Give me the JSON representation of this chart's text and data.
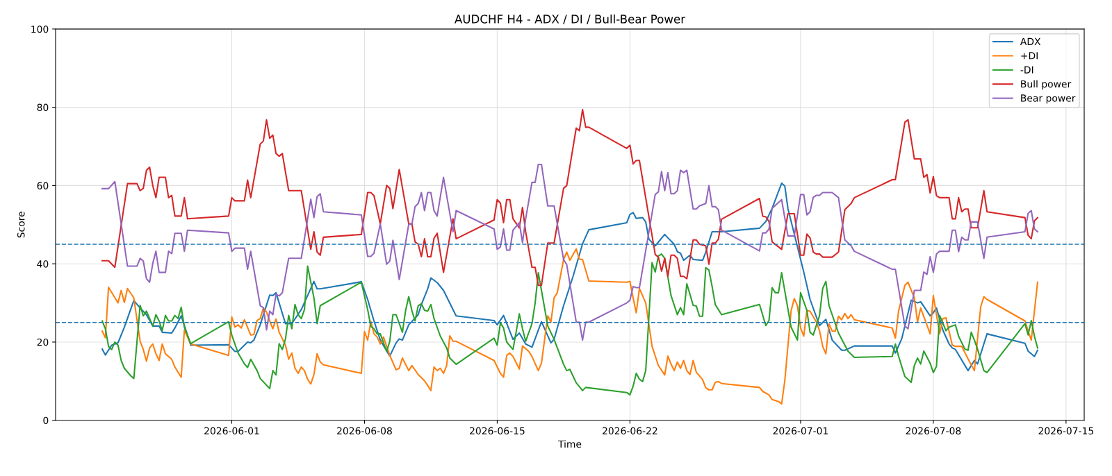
{
  "chart_data": {
    "type": "line",
    "title": "AUDCHF H4 - ADX / DI / Bull-Bear Power",
    "xlabel": "Time",
    "ylabel": "Score",
    "xlim": [
      "2026-05-22T17:00",
      "2026-07-15T23:00"
    ],
    "ylim": [
      0,
      100
    ],
    "yticks": [
      0,
      20,
      40,
      60,
      80,
      100
    ],
    "xticks": [
      "2026-06-01",
      "2026-06-08",
      "2026-06-15",
      "2026-06-22",
      "2026-07-01",
      "2026-07-08",
      "2026-07-15"
    ],
    "grid": true,
    "legend": "top right",
    "line_style": "solid",
    "marker": "none",
    "ref_lines": [
      {
        "axis": "y",
        "value": 45,
        "color": "#1f77b4",
        "line_style": "dashed"
      },
      {
        "axis": "y",
        "value": 25,
        "color": "#1f77b4",
        "line_style": "dashed"
      }
    ],
    "x": [
      "2026-05-25T04:00",
      "2026-05-25T12:00",
      "2026-05-25T20:00",
      "2026-05-26T12:00",
      "2026-05-27T00:00",
      "2026-05-27T04:00",
      "2026-05-27T08:00",
      "2026-05-27T12:00",
      "2026-05-27T16:00",
      "2026-05-27T20:00",
      "2026-05-28T00:00",
      "2026-05-28T04:00",
      "2026-05-28T12:00",
      "2026-05-28T16:00",
      "2026-05-28T20:00",
      "2026-05-29T00:00",
      "2026-05-29T08:00",
      "2026-05-29T12:00",
      "2026-05-29T16:00",
      "2026-05-31T20:00",
      "2026-06-01T00:00",
      "2026-06-01T04:00",
      "2026-06-01T16:00",
      "2026-06-01T20:00",
      "2026-06-02T00:00",
      "2026-06-02T12:00",
      "2026-06-02T16:00",
      "2026-06-02T20:00",
      "2026-06-03T00:00",
      "2026-06-03T04:00",
      "2026-06-03T08:00",
      "2026-06-03T12:00",
      "2026-06-03T16:00",
      "2026-06-04T00:00",
      "2026-06-04T16:00",
      "2026-06-05T04:00",
      "2026-06-05T08:00",
      "2026-06-05T12:00",
      "2026-06-05T16:00",
      "2026-06-05T20:00",
      "2026-06-07T20:00",
      "2026-06-08T04:00",
      "2026-06-08T08:00",
      "2026-06-08T12:00",
      "2026-06-08T20:00",
      "2026-06-09T04:00",
      "2026-06-09T08:00",
      "2026-06-09T12:00",
      "2026-06-09T20:00",
      "2026-06-10T08:00",
      "2026-06-10T12:00",
      "2026-06-10T16:00",
      "2026-06-10T20:00",
      "2026-06-11T00:00",
      "2026-06-11T04:00",
      "2026-06-11T08:00",
      "2026-06-11T12:00",
      "2026-06-11T16:00",
      "2026-06-11T20:00",
      "2026-06-12T04:00",
      "2026-06-12T16:00",
      "2026-06-12T20:00",
      "2026-06-14T20:00",
      "2026-06-15T00:00",
      "2026-06-15T04:00",
      "2026-06-15T08:00",
      "2026-06-15T12:00",
      "2026-06-15T16:00",
      "2026-06-15T20:00",
      "2026-06-16T04:00",
      "2026-06-16T08:00",
      "2026-06-16T12:00",
      "2026-06-16T20:00",
      "2026-06-17T00:00",
      "2026-06-17T04:00",
      "2026-06-17T08:00",
      "2026-06-17T16:00",
      "2026-06-18T00:00",
      "2026-06-18T12:00",
      "2026-06-18T16:00",
      "2026-06-19T04:00",
      "2026-06-19T08:00",
      "2026-06-19T12:00",
      "2026-06-19T16:00",
      "2026-06-19T20:00",
      "2026-06-21T20:00",
      "2026-06-22T00:00",
      "2026-06-22T04:00",
      "2026-06-22T08:00",
      "2026-06-22T12:00",
      "2026-06-23T08:00",
      "2026-06-23T12:00",
      "2026-06-23T16:00",
      "2026-06-23T20:00",
      "2026-06-24T00:00",
      "2026-06-24T04:00",
      "2026-06-24T08:00",
      "2026-06-24T12:00",
      "2026-06-24T16:00",
      "2026-06-24T20:00",
      "2026-06-25T00:00",
      "2026-06-25T08:00",
      "2026-06-25T12:00",
      "2026-06-25T16:00",
      "2026-06-26T00:00",
      "2026-06-26T04:00",
      "2026-06-26T08:00",
      "2026-06-26T12:00",
      "2026-06-26T16:00",
      "2026-06-26T20:00",
      "2026-06-28T20:00",
      "2026-06-29T00:00",
      "2026-06-29T04:00",
      "2026-06-29T08:00",
      "2026-06-29T12:00",
      "2026-06-30T00:00",
      "2026-06-30T08:00",
      "2026-06-30T16:00",
      "2026-07-01T00:00",
      "2026-07-01T04:00",
      "2026-07-01T08:00",
      "2026-07-01T12:00",
      "2026-07-01T16:00",
      "2026-07-01T20:00",
      "2026-07-02T00:00",
      "2026-07-02T04:00",
      "2026-07-02T16:00",
      "2026-07-03T00:00",
      "2026-07-03T08:00",
      "2026-07-03T16:00",
      "2026-07-03T20:00",
      "2026-07-05T20:00",
      "2026-07-06T00:00",
      "2026-07-06T12:00",
      "2026-07-06T16:00",
      "2026-07-07T00:00",
      "2026-07-07T08:00",
      "2026-07-07T12:00",
      "2026-07-07T16:00",
      "2026-07-07T20:00",
      "2026-07-08T00:00",
      "2026-07-08T04:00",
      "2026-07-08T08:00",
      "2026-07-08T20:00",
      "2026-07-09T00:00",
      "2026-07-09T04:00",
      "2026-07-09T08:00",
      "2026-07-09T12:00",
      "2026-07-09T16:00",
      "2026-07-09T20:00",
      "2026-07-10T00:00",
      "2026-07-10T08:00",
      "2026-07-10T16:00",
      "2026-07-10T20:00",
      "2026-07-12T20:00",
      "2026-07-13T00:00",
      "2026-07-13T04:00",
      "2026-07-13T08:00",
      "2026-07-13T12:00"
    ],
    "series": [
      {
        "name": "ADX",
        "color": "#1f77b4",
        "x": [
          "2026-05-25T04:00",
          "2026-05-25T08:00",
          "2026-05-25T16:00",
          "2026-05-26T00:00",
          "2026-05-26T08:00",
          "2026-05-26T20:00",
          "2026-05-27T04:00",
          "2026-05-27T12:00",
          "2026-05-27T20:00",
          "2026-05-28T04:00",
          "2026-05-28T08:00",
          "2026-05-28T20:00",
          "2026-05-29T00:00",
          "2026-05-29T08:00",
          "2026-05-29T20:00",
          "2026-05-31T20:00",
          "2026-06-01T04:00",
          "2026-06-01T08:00",
          "2026-06-01T20:00",
          "2026-06-02T00:00",
          "2026-06-02T04:00",
          "2026-06-02T12:00",
          "2026-06-03T00:00",
          "2026-06-03T04:00",
          "2026-06-03T08:00",
          "2026-06-03T20:00",
          "2026-06-04T04:00",
          "2026-06-04T16:00",
          "2026-06-05T08:00",
          "2026-06-05T12:00",
          "2026-06-05T16:00",
          "2026-06-07T20:00",
          "2026-06-08T04:00",
          "2026-06-08T12:00",
          "2026-06-08T20:00",
          "2026-06-09T08:00",
          "2026-06-09T16:00",
          "2026-06-09T20:00",
          "2026-06-10T00:00",
          "2026-06-10T08:00",
          "2026-06-10T20:00",
          "2026-06-11T00:00",
          "2026-06-11T08:00",
          "2026-06-11T12:00",
          "2026-06-11T20:00",
          "2026-06-12T04:00",
          "2026-06-12T20:00",
          "2026-06-14T20:00",
          "2026-06-15T00:00",
          "2026-06-15T08:00",
          "2026-06-15T20:00",
          "2026-06-16T04:00",
          "2026-06-16T12:00",
          "2026-06-16T20:00",
          "2026-06-17T08:00",
          "2026-06-17T20:00",
          "2026-06-18T00:00",
          "2026-06-18T12:00",
          "2026-06-19T00:00",
          "2026-06-19T12:00",
          "2026-06-19T20:00",
          "2026-06-21T20:00",
          "2026-06-22T00:00",
          "2026-06-22T04:00",
          "2026-06-22T08:00",
          "2026-06-22T16:00",
          "2026-06-22T20:00",
          "2026-06-23T00:00",
          "2026-06-23T08:00",
          "2026-06-23T20:00",
          "2026-06-24T08:00",
          "2026-06-24T12:00",
          "2026-06-24T16:00",
          "2026-06-24T20:00",
          "2026-06-25T04:00",
          "2026-06-25T08:00",
          "2026-06-25T20:00",
          "2026-06-26T00:00",
          "2026-06-26T08:00",
          "2026-06-26T20:00",
          "2026-06-28T20:00",
          "2026-06-29T04:00",
          "2026-06-29T12:00",
          "2026-06-30T00:00",
          "2026-06-30T04:00",
          "2026-06-30T08:00",
          "2026-06-30T16:00",
          "2026-07-01T04:00",
          "2026-07-01T12:00",
          "2026-07-02T00:00",
          "2026-07-02T08:00",
          "2026-07-02T16:00",
          "2026-07-03T04:00",
          "2026-07-03T08:00",
          "2026-07-03T20:00",
          "2026-07-05T20:00",
          "2026-07-06T00:00",
          "2026-07-06T08:00",
          "2026-07-06T20:00",
          "2026-07-07T04:00",
          "2026-07-07T08:00",
          "2026-07-07T20:00",
          "2026-07-08T00:00",
          "2026-07-08T04:00",
          "2026-07-08T12:00",
          "2026-07-08T20:00",
          "2026-07-09T00:00",
          "2026-07-09T04:00",
          "2026-07-09T20:00",
          "2026-07-10T04:00",
          "2026-07-10T08:00",
          "2026-07-10T20:00",
          "2026-07-12T20:00",
          "2026-07-13T00:00",
          "2026-07-13T08:00",
          "2026-07-13T12:00"
        ],
        "values": [
          18.2,
          16.7,
          19.2,
          19.8,
          23.8,
          30.6,
          28.7,
          27,
          24.1,
          24.1,
          22.5,
          22.3,
          23.6,
          26.7,
          19.2,
          19.3,
          17.6,
          17.6,
          20,
          19.8,
          20.5,
          24.4,
          32,
          31.9,
          32.6,
          24.7,
          24.7,
          28.3,
          35.5,
          33.6,
          33.6,
          35.4,
          30.9,
          25.4,
          20.5,
          16.4,
          19.8,
          20.8,
          20.5,
          24.4,
          27,
          29.6,
          33.6,
          36.4,
          35.2,
          33.2,
          26.7,
          25.5,
          24.4,
          26.8,
          20.7,
          22.3,
          19.5,
          18.7,
          25.2,
          19.8,
          20.7,
          29.3,
          36.8,
          45.1,
          48.7,
          50.5,
          52.6,
          53.1,
          51.6,
          51.8,
          50.7,
          46.3,
          44.6,
          47.5,
          45,
          43.1,
          42.7,
          40.9,
          42.2,
          41.1,
          40.9,
          43,
          48.2,
          48.2,
          49.1,
          50.8,
          54.2,
          60.6,
          59.9,
          54.1,
          47.6,
          37.9,
          30.9,
          24.2,
          25.8,
          20.5,
          17.9,
          17.9,
          19,
          19,
          17.2,
          20.8,
          30.7,
          30,
          30.3,
          26.7,
          27.5,
          28.7,
          23.1,
          19.5,
          18.5,
          18.1,
          12.7,
          15.3,
          14.4,
          22.1,
          19.7,
          17.7,
          16.3,
          17.9
        ]
      },
      {
        "name": "+DI",
        "color": "#ff7f0e",
        "x": [
          "2026-05-25T04:00",
          "2026-05-25T08:00",
          "2026-05-25T12:00",
          "2026-05-26T00:00",
          "2026-05-26T04:00",
          "2026-05-26T08:00",
          "2026-05-26T12:00",
          "2026-05-26T20:00",
          "2026-05-27T04:00",
          "2026-05-27T08:00",
          "2026-05-27T12:00",
          "2026-05-27T16:00",
          "2026-05-27T20:00",
          "2026-05-28T00:00",
          "2026-05-28T04:00",
          "2026-05-28T08:00",
          "2026-05-28T12:00",
          "2026-05-28T20:00",
          "2026-05-29T00:00",
          "2026-05-29T08:00",
          "2026-05-29T12:00",
          "2026-05-29T20:00",
          "2026-05-31T20:00",
          "2026-06-01T00:00",
          "2026-06-01T04:00",
          "2026-06-01T08:00",
          "2026-06-01T12:00",
          "2026-06-01T16:00",
          "2026-06-02T00:00",
          "2026-06-02T04:00",
          "2026-06-02T08:00",
          "2026-06-02T12:00",
          "2026-06-02T16:00",
          "2026-06-02T20:00",
          "2026-06-03T00:00",
          "2026-06-03T04:00",
          "2026-06-03T08:00",
          "2026-06-03T12:00",
          "2026-06-03T20:00",
          "2026-06-04T00:00",
          "2026-06-04T04:00",
          "2026-06-04T08:00",
          "2026-06-04T12:00",
          "2026-06-04T16:00",
          "2026-06-04T20:00",
          "2026-06-05T00:00",
          "2026-06-05T04:00",
          "2026-06-05T08:00",
          "2026-06-05T12:00",
          "2026-06-05T16:00",
          "2026-06-05T20:00",
          "2026-06-07T20:00",
          "2026-06-08T00:00",
          "2026-06-08T04:00",
          "2026-06-08T08:00",
          "2026-06-08T12:00",
          "2026-06-08T16:00",
          "2026-06-08T20:00",
          "2026-06-09T00:00",
          "2026-06-09T08:00",
          "2026-06-09T16:00",
          "2026-06-09T20:00",
          "2026-06-10T00:00",
          "2026-06-10T08:00",
          "2026-06-10T12:00",
          "2026-06-10T20:00",
          "2026-06-11T04:00",
          "2026-06-11T08:00",
          "2026-06-11T12:00",
          "2026-06-11T16:00",
          "2026-06-11T20:00",
          "2026-06-12T00:00",
          "2026-06-12T04:00",
          "2026-06-12T08:00",
          "2026-06-12T12:00",
          "2026-06-12T16:00",
          "2026-06-12T20:00",
          "2026-06-14T20:00",
          "2026-06-15T04:00",
          "2026-06-15T08:00",
          "2026-06-15T12:00",
          "2026-06-15T16:00",
          "2026-06-15T20:00",
          "2026-06-16T04:00",
          "2026-06-16T08:00",
          "2026-06-16T16:00",
          "2026-06-16T20:00",
          "2026-06-17T04:00",
          "2026-06-17T08:00",
          "2026-06-17T16:00",
          "2026-06-17T20:00",
          "2026-06-18T00:00",
          "2026-06-18T04:00",
          "2026-06-18T12:00",
          "2026-06-18T16:00",
          "2026-06-18T20:00",
          "2026-06-19T04:00",
          "2026-06-19T08:00",
          "2026-06-19T12:00",
          "2026-06-19T20:00",
          "2026-06-21T20:00",
          "2026-06-22T00:00",
          "2026-06-22T04:00",
          "2026-06-22T08:00",
          "2026-06-22T12:00",
          "2026-06-22T20:00",
          "2026-06-23T04:00",
          "2026-06-23T12:00",
          "2026-06-23T20:00",
          "2026-06-24T00:00",
          "2026-06-24T04:00",
          "2026-06-24T08:00",
          "2026-06-24T12:00",
          "2026-06-24T16:00",
          "2026-06-24T20:00",
          "2026-06-25T00:00",
          "2026-06-25T04:00",
          "2026-06-25T08:00",
          "2026-06-25T12:00",
          "2026-06-25T20:00",
          "2026-06-26T00:00",
          "2026-06-26T04:00",
          "2026-06-26T08:00",
          "2026-06-26T12:00",
          "2026-06-26T16:00",
          "2026-06-26T20:00",
          "2026-06-28T20:00",
          "2026-06-29T00:00",
          "2026-06-29T08:00",
          "2026-06-29T12:00",
          "2026-06-29T20:00",
          "2026-06-30T00:00",
          "2026-06-30T04:00",
          "2026-06-30T12:00",
          "2026-06-30T16:00",
          "2026-06-30T20:00",
          "2026-07-01T00:00",
          "2026-07-01T04:00",
          "2026-07-01T08:00",
          "2026-07-01T12:00",
          "2026-07-01T20:00",
          "2026-07-02T00:00",
          "2026-07-02T04:00",
          "2026-07-02T08:00",
          "2026-07-02T12:00",
          "2026-07-02T16:00",
          "2026-07-02T20:00",
          "2026-07-03T00:00",
          "2026-07-03T04:00",
          "2026-07-03T08:00",
          "2026-07-03T12:00",
          "2026-07-03T16:00",
          "2026-07-03T20:00",
          "2026-07-05T20:00",
          "2026-07-06T00:00",
          "2026-07-06T04:00",
          "2026-07-06T12:00",
          "2026-07-06T16:00",
          "2026-07-07T00:00",
          "2026-07-07T04:00",
          "2026-07-07T08:00",
          "2026-07-07T20:00",
          "2026-07-08T00:00",
          "2026-07-08T08:00",
          "2026-07-08T12:00",
          "2026-07-08T16:00",
          "2026-07-09T00:00",
          "2026-07-09T04:00",
          "2026-07-09T12:00",
          "2026-07-09T20:00",
          "2026-07-10T04:00",
          "2026-07-10T12:00",
          "2026-07-10T16:00",
          "2026-07-10T20:00",
          "2026-07-12T20:00",
          "2026-07-13T00:00",
          "2026-07-13T04:00",
          "2026-07-13T12:00"
        ],
        "values": [
          22.8,
          21.1,
          34,
          30,
          33.2,
          30.1,
          33.7,
          31.3,
          20.2,
          18.1,
          15.1,
          18.5,
          19.5,
          17,
          15.3,
          19.5,
          17,
          15.6,
          13.6,
          11,
          23.1,
          19.5,
          16.6,
          26.4,
          23.8,
          24.4,
          23.6,
          25.7,
          21.8,
          21.9,
          25.5,
          26,
          28.7,
          27.7,
          25.4,
          23.4,
          25.9,
          22.5,
          19.2,
          15.6,
          17.2,
          13.3,
          12,
          13.6,
          12.7,
          10.5,
          9.3,
          11.7,
          17,
          14.9,
          14.2,
          12,
          22.7,
          20.5,
          25.3,
          22.1,
          21.3,
          19.5,
          21.3,
          16.6,
          12.9,
          13.3,
          15.9,
          12.7,
          14,
          11.7,
          10.1,
          8.9,
          7.6,
          13.6,
          12.7,
          13.3,
          12,
          14,
          21.6,
          20.2,
          20.2,
          15.3,
          12,
          11,
          16.6,
          17.2,
          16.3,
          13.1,
          19,
          17.6,
          16.3,
          12.7,
          14.6,
          26.7,
          25.1,
          31.3,
          32.6,
          41.1,
          43,
          40.9,
          43.8,
          41.2,
          41.1,
          35.6,
          35.3,
          35.5,
          31.3,
          27.5,
          33.7,
          30,
          18.9,
          14,
          11.6,
          16.4,
          14.4,
          12.7,
          14.9,
          13.3,
          15.3,
          12.7,
          11.7,
          15.3,
          12.3,
          10.4,
          8.3,
          7.8,
          7.8,
          9.7,
          9.9,
          9.4,
          8.4,
          7.4,
          6.5,
          5.3,
          4.8,
          4.2,
          10.1,
          28,
          31.1,
          29.3,
          23.6,
          21.5,
          28.1,
          27.9,
          25.1,
          22.9,
          18.9,
          17,
          24.6,
          22.8,
          22.8,
          26.6,
          25.7,
          27.3,
          26,
          27,
          25.7,
          23.6,
          21,
          27.9,
          34.5,
          35.3,
          31.3,
          25.1,
          28.7,
          22.1,
          31.9,
          22.1,
          26,
          26.2,
          19.2,
          18.9,
          18.9,
          15.7,
          12.7,
          29,
          31.6,
          30.9,
          25.4,
          22.8,
          20.5,
          35.3
        ]
      },
      {
        "name": "-DI",
        "color": "#2ca02c",
        "x": [
          "2026-05-25T04:00",
          "2026-05-25T08:00",
          "2026-05-25T12:00",
          "2026-05-25T16:00",
          "2026-05-25T20:00",
          "2026-05-26T00:00",
          "2026-05-26T04:00",
          "2026-05-26T08:00",
          "2026-05-26T16:00",
          "2026-05-26T20:00",
          "2026-05-27T04:00",
          "2026-05-27T08:00",
          "2026-05-27T12:00",
          "2026-05-27T20:00",
          "2026-05-28T00:00",
          "2026-05-28T04:00",
          "2026-05-28T08:00",
          "2026-05-28T12:00",
          "2026-05-28T16:00",
          "2026-05-28T20:00",
          "2026-05-29T00:00",
          "2026-05-29T04:00",
          "2026-05-29T08:00",
          "2026-05-29T12:00",
          "2026-05-29T20:00",
          "2026-05-31T20:00",
          "2026-06-01T00:00",
          "2026-06-01T08:00",
          "2026-06-01T16:00",
          "2026-06-01T20:00",
          "2026-06-02T00:00",
          "2026-06-02T08:00",
          "2026-06-02T12:00",
          "2026-06-03T00:00",
          "2026-06-03T04:00",
          "2026-06-03T08:00",
          "2026-06-03T12:00",
          "2026-06-03T16:00",
          "2026-06-03T20:00",
          "2026-06-04T00:00",
          "2026-06-04T04:00",
          "2026-06-04T08:00",
          "2026-06-04T12:00",
          "2026-06-04T16:00",
          "2026-06-04T20:00",
          "2026-06-05T00:00",
          "2026-06-05T08:00",
          "2026-06-05T12:00",
          "2026-06-05T16:00",
          "2026-06-07T20:00",
          "2026-06-08T04:00",
          "2026-06-08T08:00",
          "2026-06-08T12:00",
          "2026-06-08T16:00",
          "2026-06-08T20:00",
          "2026-06-09T04:00",
          "2026-06-09T08:00",
          "2026-06-09T12:00",
          "2026-06-09T16:00",
          "2026-06-10T00:00",
          "2026-06-10T04:00",
          "2026-06-10T08:00",
          "2026-06-10T12:00",
          "2026-06-10T16:00",
          "2026-06-10T20:00",
          "2026-06-11T00:00",
          "2026-06-11T04:00",
          "2026-06-11T08:00",
          "2026-06-11T12:00",
          "2026-06-11T16:00",
          "2026-06-12T00:00",
          "2026-06-12T08:00",
          "2026-06-12T12:00",
          "2026-06-12T20:00",
          "2026-06-14T20:00",
          "2026-06-15T00:00",
          "2026-06-15T04:00",
          "2026-06-15T08:00",
          "2026-06-15T12:00",
          "2026-06-15T20:00",
          "2026-06-16T04:00",
          "2026-06-16T08:00",
          "2026-06-16T12:00",
          "2026-06-16T20:00",
          "2026-06-17T00:00",
          "2026-06-17T04:00",
          "2026-06-17T08:00",
          "2026-06-17T16:00",
          "2026-06-18T00:00",
          "2026-06-18T12:00",
          "2026-06-18T16:00",
          "2026-06-18T20:00",
          "2026-06-19T04:00",
          "2026-06-19T12:00",
          "2026-06-19T16:00",
          "2026-06-21T20:00",
          "2026-06-22T00:00",
          "2026-06-22T04:00",
          "2026-06-22T08:00",
          "2026-06-22T12:00",
          "2026-06-22T16:00",
          "2026-06-22T20:00",
          "2026-06-23T04:00",
          "2026-06-23T08:00",
          "2026-06-23T12:00",
          "2026-06-23T16:00",
          "2026-06-23T20:00",
          "2026-06-24T04:00",
          "2026-06-24T12:00",
          "2026-06-24T16:00",
          "2026-06-24T20:00",
          "2026-06-25T00:00",
          "2026-06-25T04:00",
          "2026-06-25T08:00",
          "2026-06-25T12:00",
          "2026-06-25T16:00",
          "2026-06-25T20:00",
          "2026-06-26T00:00",
          "2026-06-26T04:00",
          "2026-06-26T08:00",
          "2026-06-26T12:00",
          "2026-06-26T20:00",
          "2026-06-28T20:00",
          "2026-06-29T04:00",
          "2026-06-29T08:00",
          "2026-06-29T12:00",
          "2026-06-29T16:00",
          "2026-06-29T20:00",
          "2026-06-30T00:00",
          "2026-06-30T12:00",
          "2026-06-30T20:00",
          "2026-07-01T00:00",
          "2026-07-01T08:00",
          "2026-07-01T12:00",
          "2026-07-01T16:00",
          "2026-07-02T00:00",
          "2026-07-02T04:00",
          "2026-07-02T08:00",
          "2026-07-02T12:00",
          "2026-07-03T00:00",
          "2026-07-03T12:00",
          "2026-07-03T20:00",
          "2026-07-05T20:00",
          "2026-07-06T00:00",
          "2026-07-06T04:00",
          "2026-07-06T12:00",
          "2026-07-06T20:00",
          "2026-07-07T00:00",
          "2026-07-07T04:00",
          "2026-07-07T08:00",
          "2026-07-07T12:00",
          "2026-07-07T20:00",
          "2026-07-08T00:00",
          "2026-07-08T04:00",
          "2026-07-08T08:00",
          "2026-07-08T16:00",
          "2026-07-08T20:00",
          "2026-07-09T04:00",
          "2026-07-09T08:00",
          "2026-07-09T16:00",
          "2026-07-09T20:00",
          "2026-07-10T00:00",
          "2026-07-10T04:00",
          "2026-07-10T08:00",
          "2026-07-10T16:00",
          "2026-07-10T20:00",
          "2026-07-12T20:00",
          "2026-07-13T00:00",
          "2026-07-13T04:00",
          "2026-07-13T08:00",
          "2026-07-13T12:00"
        ],
        "values": [
          25.4,
          23.4,
          18.9,
          18.1,
          20,
          19.2,
          15.3,
          13.3,
          11.4,
          10.7,
          29.4,
          26.7,
          27.9,
          24.1,
          27,
          25.4,
          22.9,
          26.8,
          25.4,
          25.4,
          26.8,
          26,
          28.9,
          23.8,
          19.6,
          25.2,
          21.8,
          17.2,
          14.4,
          13.5,
          15.6,
          12.7,
          10.7,
          8.1,
          12.7,
          11.6,
          19.6,
          18.1,
          20.8,
          26.8,
          23.4,
          29.6,
          27,
          26,
          28.3,
          39.4,
          31.3,
          24.7,
          29.3,
          35.3,
          28.3,
          24,
          23.4,
          22.1,
          22.1,
          17.6,
          20.2,
          27,
          27,
          22.5,
          28,
          31.6,
          28,
          25.4,
          29.3,
          29.8,
          28.1,
          27.9,
          29.6,
          26,
          21.5,
          18.5,
          15.9,
          14.3,
          21,
          19.2,
          24.9,
          23.6,
          20,
          18.1,
          27.2,
          23.4,
          20.2,
          24.7,
          30,
          37.7,
          33.2,
          24.1,
          20.7,
          14.3,
          12.7,
          13,
          9.6,
          7.6,
          8.4,
          7.1,
          6.5,
          8.7,
          12,
          10.5,
          9.9,
          12.7,
          40.3,
          37.9,
          42,
          42.5,
          41.4,
          31.9,
          27,
          28.8,
          27,
          34.9,
          32.2,
          29.4,
          29.2,
          26.6,
          26.6,
          39,
          38.4,
          34.2,
          29.6,
          27,
          29.6,
          24.2,
          25.5,
          33.9,
          32.6,
          32.6,
          37.7,
          23.8,
          20.5,
          32.6,
          28.1,
          22.5,
          21.8,
          26.8,
          33.7,
          35.5,
          29.3,
          22.3,
          17.7,
          16.1,
          16.3,
          19.5,
          16.4,
          11.2,
          9.7,
          14,
          15.9,
          14.4,
          17.7,
          14.6,
          12.2,
          13.8,
          26.8,
          22.9,
          23.8,
          24.4,
          21.5,
          18.2,
          17.9,
          22.5,
          20.5,
          18.2,
          12.7,
          12.2,
          24.7,
          21.8,
          25.5,
          21.5,
          18.5
        ]
      },
      {
        "name": "Bull power",
        "color": "#d62728",
        "values": [
          40.8,
          40.8,
          39.1,
          60.5,
          60.5,
          58.7,
          59.3,
          63.9,
          64.7,
          60,
          56.9,
          62.1,
          62.1,
          56.9,
          57.5,
          52.2,
          52.2,
          56.9,
          51.5,
          52.2,
          56.9,
          56.1,
          56.1,
          61.4,
          56.9,
          70.6,
          71.4,
          76.8,
          72.1,
          72.9,
          68.2,
          67.5,
          68.2,
          58.7,
          58.7,
          43.7,
          48.2,
          43.0,
          42.2,
          46.8,
          47.5,
          58.2,
          58.2,
          57.4,
          50.2,
          60,
          59.3,
          54.1,
          64.1,
          50.2,
          50.2,
          45.6,
          45,
          41.8,
          46.4,
          41.8,
          41.8,
          46.5,
          47.8,
          37.8,
          51.5,
          46.4,
          51.2,
          56.4,
          55.5,
          50.5,
          56.4,
          56.4,
          51.5,
          49.2,
          54.4,
          48.2,
          39.1,
          39.1,
          34.5,
          34.5,
          45.3,
          45.3,
          59.3,
          60,
          74.7,
          74,
          79.4,
          74.9,
          74.9,
          69.5,
          70.3,
          65.5,
          66.4,
          66.4,
          42.4,
          41.7,
          38.1,
          41.4,
          36.8,
          42.2,
          42.2,
          41.4,
          36.8,
          36.8,
          36.2,
          46.1,
          46.1,
          45,
          44.6,
          39.9,
          45.3,
          45.3,
          46.3,
          51.4,
          56.7,
          52.2,
          52,
          50.8,
          45.6,
          43.7,
          52.8,
          52.8,
          42.2,
          42.2,
          47.6,
          46.6,
          43,
          42.5,
          42.5,
          41.7,
          41.7,
          43,
          53.8,
          55.4,
          56.9,
          61.5,
          61.5,
          76.2,
          76.8,
          66.8,
          66.8,
          62.1,
          62.8,
          58.1,
          62.3,
          57.4,
          56.9,
          56.9,
          51.5,
          51.5,
          56.9,
          53.3,
          54,
          54,
          49.2,
          49.2,
          58.7,
          53.3,
          51.8,
          47.3,
          46.4,
          51,
          51.8
        ]
      },
      {
        "name": "Bear power",
        "color": "#9467bd",
        "values": [
          59.2,
          59.2,
          61,
          39.4,
          39.4,
          41.4,
          40.7,
          36.2,
          35.3,
          40.1,
          43.2,
          37.8,
          37.8,
          43.2,
          42.6,
          47.8,
          47.8,
          43.2,
          48.6,
          47.9,
          43.2,
          44,
          44,
          38.6,
          43.2,
          29.3,
          28.8,
          23.1,
          27.9,
          27,
          32.2,
          31.8,
          32.6,
          41.4,
          41.4,
          56.5,
          51.8,
          57.2,
          57.9,
          53.3,
          52.5,
          41.9,
          41.9,
          42.7,
          50.2,
          39.9,
          40.7,
          46,
          36,
          50.1,
          50.1,
          54.6,
          55.4,
          58.2,
          53.6,
          58.2,
          58.2,
          53.6,
          52.2,
          62.1,
          48.2,
          53.6,
          48.9,
          43.7,
          44.3,
          48.9,
          43.5,
          43.5,
          48.6,
          50.5,
          45.4,
          51.5,
          60.8,
          60.8,
          65.4,
          65.4,
          54.8,
          54.8,
          41.1,
          39.8,
          25.1,
          25.1,
          20.5,
          25.1,
          25.1,
          30,
          30.7,
          34.2,
          33.9,
          33.9,
          57.7,
          58.4,
          63.6,
          58.7,
          63.3,
          57.9,
          57.9,
          58.7,
          63.9,
          63.3,
          63.9,
          54,
          54,
          54.8,
          55.4,
          60,
          54.6,
          54.6,
          53.8,
          48.6,
          43.3,
          47.9,
          47.9,
          48.9,
          54.2,
          56.4,
          47.1,
          47.1,
          57.7,
          57.7,
          52.5,
          53.3,
          57,
          57.5,
          57.5,
          58.2,
          58.2,
          56.9,
          46.1,
          44.6,
          43.2,
          38.6,
          38.6,
          24.1,
          23.4,
          33.2,
          33.2,
          37.9,
          37.3,
          41.8,
          37.8,
          42.5,
          43.2,
          43.2,
          48.6,
          48.6,
          43.1,
          46.8,
          46.1,
          46.1,
          50.7,
          50.7,
          41.4,
          46.8,
          48.2,
          52.9,
          53.6,
          48.9,
          48.2
        ]
      }
    ]
  }
}
